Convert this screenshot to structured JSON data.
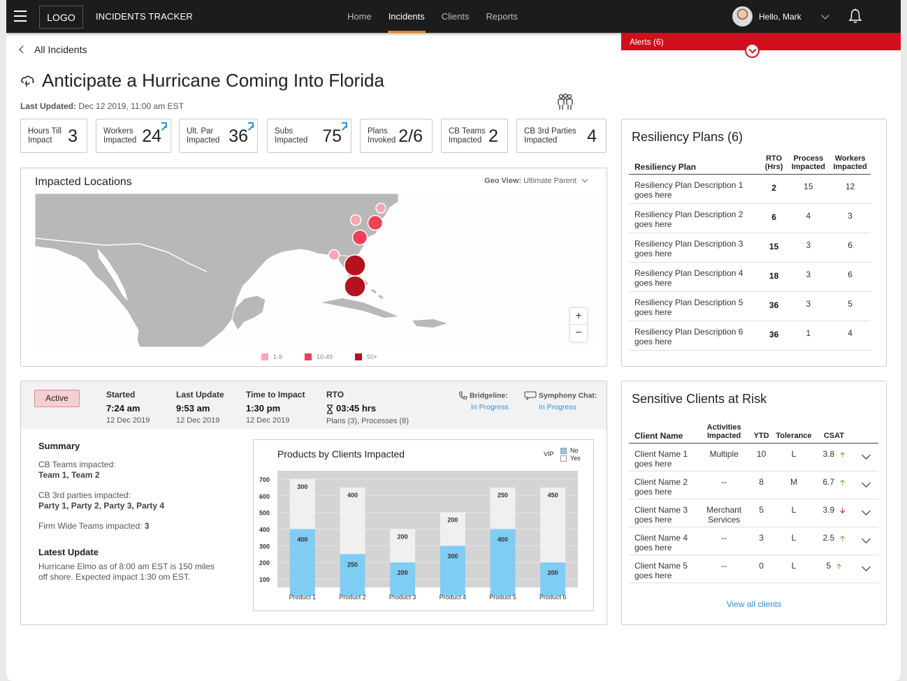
{
  "app": {
    "logo": "LOGO",
    "title": "INCIDENTS TRACKER"
  },
  "nav": [
    {
      "label": "Home",
      "active": false
    },
    {
      "label": "Incidents",
      "active": true
    },
    {
      "label": "Clients",
      "active": false
    },
    {
      "label": "Reports",
      "active": false
    }
  ],
  "user": {
    "greeting": "Hello, Mark"
  },
  "alerts": {
    "label": "Alerts (6)"
  },
  "breadcrumb": {
    "back_label": "All Incidents"
  },
  "incident": {
    "title": "Anticipate a Hurricane Coming Into Florida",
    "updated_label": "Last Updated:",
    "updated_value": "Dec 12 2019, 11:00 am EST"
  },
  "stats": [
    {
      "label1": "Hours Till",
      "label2": "Impact",
      "value": "3",
      "link": false
    },
    {
      "label1": "Workers",
      "label2": "Impacted",
      "value": "24",
      "link": true
    },
    {
      "label1": "Ult. Par",
      "label2": "Impacted",
      "value": "36",
      "link": true
    },
    {
      "label1": "Subs",
      "label2": "Impacted",
      "value": "75",
      "link": true
    },
    {
      "label1": "Plans",
      "label2": "Invoked",
      "value": "2/6",
      "link": false
    },
    {
      "label1": "CB Teams",
      "label2": "Impacted",
      "value": "2",
      "link": false
    },
    {
      "label1": "CB 3rd Parties",
      "label2": "Impacted",
      "value": "4",
      "link": false
    }
  ],
  "map": {
    "title": "Impacted Locations",
    "geo_label": "Geo View:",
    "geo_value": "Ultimate Parent",
    "legend": [
      {
        "label": "1-9",
        "color": "#f7a6b2"
      },
      {
        "label": "10-49",
        "color": "#ee4058"
      },
      {
        "label": "50+",
        "color": "#b3121f"
      }
    ],
    "zoom_in": "+",
    "zoom_out": "−"
  },
  "detail": {
    "status": "Active",
    "started_label": "Started",
    "started_time": "7:24 am",
    "started_date": "12 Dec 2019",
    "update_label": "Last Update",
    "update_time": "9:53 am",
    "update_date": "12 Dec 2019",
    "impact_label": "Time to Impact",
    "impact_time": "1:30 pm",
    "impact_date": "12 Dec 2019",
    "rto_label": "RTO",
    "rto_value": "03:45 hrs",
    "rto_sub": "Plans (3), Processes (8)",
    "bridge_label": "Bridgeline:",
    "bridge_status": "In Progress",
    "chat_label": "Symphony Chat:",
    "chat_status": "In Progress"
  },
  "summary": {
    "heading": "Summary",
    "teams_label": "CB Teams impacted:",
    "teams_value": "Team 1, Team 2",
    "parties_label": "CB 3rd parties impacted:",
    "parties_value": "Party 1, Party 2, Party 3, Party 4",
    "firm_label": "Firm Wide Teams impacted:",
    "firm_value": "3",
    "latest_heading": "Latest Update",
    "latest_text": "Hurricane Elmo as of 8:00 am EST is 150 miles off shore.  Expected impact 1:30 om EST."
  },
  "chart_data": {
    "type": "bar",
    "title": "Products by Clients Impacted",
    "categories": [
      "Product 1",
      "Product 2",
      "Product 3",
      "Product 4",
      "Product 5",
      "Product 6"
    ],
    "series": [
      {
        "name": "Yes",
        "values": [
          400,
          250,
          200,
          300,
          400,
          200
        ],
        "color": "#7fcdf5"
      },
      {
        "name": "No",
        "values": [
          300,
          400,
          200,
          200,
          250,
          450
        ],
        "color": "#f0f0f0"
      }
    ],
    "stacked": true,
    "legend_title": "VIP",
    "legend_placement": "top-right",
    "yticks": [
      700,
      600,
      500,
      400,
      300,
      200,
      100
    ],
    "ylim": [
      0,
      700
    ],
    "grid": true,
    "plot_bg": "#d4d4d4"
  },
  "resiliency": {
    "title": "Resiliency Plans (6)",
    "headers": [
      "Resiliency Plan",
      "RTO (Hrs)",
      "Process Impacted",
      "Workers Impacted"
    ],
    "rows": [
      {
        "desc": "Resiliency Plan Description 1 goes here",
        "rto": "2",
        "process": "15",
        "workers": "12"
      },
      {
        "desc": "Resiliency Plan Description 2 goes here",
        "rto": "6",
        "process": "4",
        "workers": "3"
      },
      {
        "desc": "Resiliency Plan Description 3 goes here",
        "rto": "15",
        "process": "3",
        "workers": "6"
      },
      {
        "desc": "Resiliency Plan Description 4 goes here",
        "rto": "18",
        "process": "3",
        "workers": "6"
      },
      {
        "desc": "Resiliency Plan Description 5 goes here",
        "rto": "36",
        "process": "3",
        "workers": "5"
      },
      {
        "desc": "Resiliency Plan Description 6 goes here",
        "rto": "36",
        "process": "1",
        "workers": "4"
      }
    ]
  },
  "clients": {
    "title": "Sensitive Clients at Risk",
    "headers": [
      "Client Name",
      "Activities Impacted",
      "YTD",
      "Tolerance",
      "CSAT"
    ],
    "rows": [
      {
        "name": "Client Name 1 goes here",
        "activities": "Multiple",
        "ytd": "10",
        "tolerance": "L",
        "csat": "3.8",
        "trend": "up"
      },
      {
        "name": "Client Name 2 goes here",
        "activities": "--",
        "ytd": "8",
        "tolerance": "M",
        "csat": "6.7",
        "trend": "up"
      },
      {
        "name": "Client Name 3 goes here",
        "activities": "Merchant Services",
        "ytd": "5",
        "tolerance": "L",
        "csat": "3.9",
        "trend": "down"
      },
      {
        "name": "Client Name 4 goes here",
        "activities": "--",
        "ytd": "3",
        "tolerance": "L",
        "csat": "2.5",
        "trend": "up"
      },
      {
        "name": "Client Name 5 goes here",
        "activities": "--",
        "ytd": "0",
        "tolerance": "L",
        "csat": "5",
        "trend": "up"
      }
    ],
    "view_all": "View all clients"
  }
}
